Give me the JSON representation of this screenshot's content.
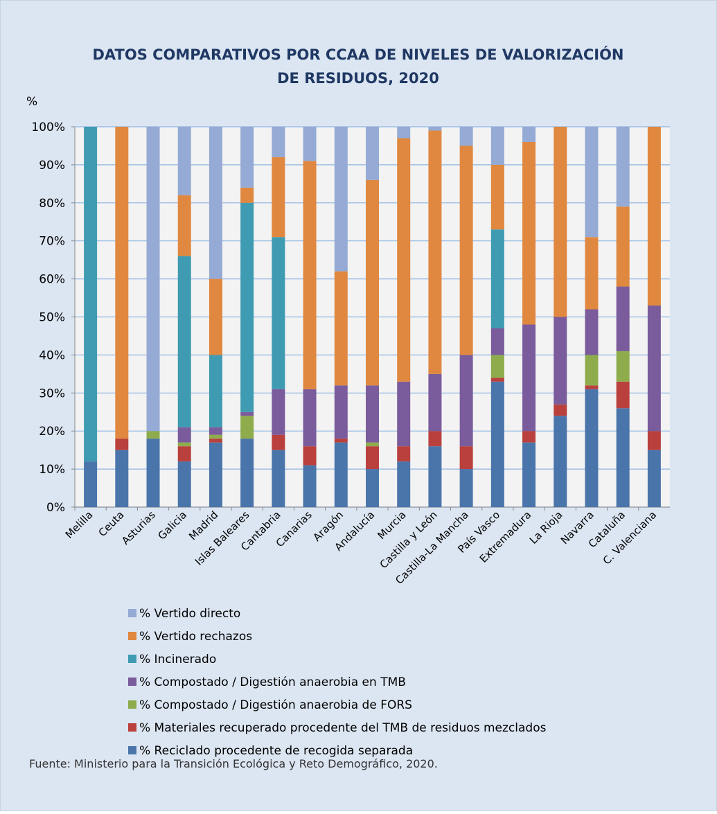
{
  "chart_data": {
    "type": "stacked_bar",
    "title": [
      "DATOS COMPARATIVOS POR CCAA DE NIVELES DE VALORIZACIÓN",
      "DE RESIDUOS, 2020"
    ],
    "ylabel": "%",
    "categories": [
      "Melilla",
      "Ceuta",
      "Asturias",
      "Galicia",
      "Madrid",
      "Islas Baleares",
      "Cantabria",
      "Canarias",
      "Aragón",
      "Andalucía",
      "Murcia",
      "Castilla y León",
      "Castilla-La Mancha",
      "País Vasco",
      "Extremadura",
      "La Rioja",
      "Navarra",
      "Cataluña",
      "C. Valenciana"
    ],
    "series": [
      {
        "name": "% Reciclado procedente de recogida separada",
        "color": "#4a75aa",
        "values": [
          12,
          15,
          18,
          12,
          17,
          18,
          15,
          11,
          17,
          10,
          12,
          16,
          10,
          33,
          17,
          24,
          31,
          26,
          15
        ]
      },
      {
        "name": "% Materiales recuperado procedente del TMB de residuos mezclados",
        "color": "#b9403d",
        "values": [
          0,
          3,
          0,
          4,
          1,
          0,
          4,
          5,
          1,
          6,
          4,
          4,
          6,
          1,
          3,
          3,
          1,
          7,
          5
        ]
      },
      {
        "name": "% Compostado / Digestión anaerobia de FORS",
        "color": "#8eac4c",
        "values": [
          0,
          0,
          2,
          1,
          1,
          6,
          0,
          0,
          0,
          1,
          0,
          0,
          0,
          6,
          0,
          0,
          8,
          8,
          0
        ]
      },
      {
        "name": "% Compostado / Digestión anaerobia en TMB",
        "color": "#7a5b9b",
        "values": [
          0,
          0,
          0,
          4,
          2,
          1,
          12,
          15,
          14,
          15,
          17,
          15,
          24,
          7,
          28,
          23,
          12,
          17,
          33
        ]
      },
      {
        "name": "% Incinerado",
        "color": "#3f9bb1",
        "values": [
          88,
          0,
          0,
          45,
          19,
          55,
          40,
          0,
          0,
          0,
          0,
          0,
          0,
          26,
          0,
          0,
          0,
          0,
          0
        ]
      },
      {
        "name": "% Vertido rechazos",
        "color": "#e0883f",
        "values": [
          0,
          82,
          0,
          16,
          20,
          4,
          21,
          60,
          30,
          54,
          64,
          64,
          55,
          17,
          48,
          50,
          19,
          21,
          47
        ]
      },
      {
        "name": "% Vertido directo",
        "color": "#95aad4",
        "values": [
          0,
          0,
          80,
          18,
          40,
          16,
          8,
          9,
          38,
          14,
          3,
          1,
          5,
          10,
          4,
          0,
          29,
          21,
          0
        ]
      }
    ],
    "ylim": [
      0,
      100
    ],
    "yticks": [
      {
        "value": 0,
        "label": "0%"
      },
      {
        "value": 10,
        "label": "10%"
      },
      {
        "value": 20,
        "label": "20%"
      },
      {
        "value": 30,
        "label": "30%"
      },
      {
        "value": 40,
        "label": "40%"
      },
      {
        "value": 50,
        "label": "50%"
      },
      {
        "value": 60,
        "label": "60%"
      },
      {
        "value": 70,
        "label": "70%"
      },
      {
        "value": 80,
        "label": "80%"
      },
      {
        "value": 90,
        "label": "90%"
      },
      {
        "value": 100,
        "label": "100%"
      }
    ],
    "grid": true,
    "source": "Fuente: Ministerio para la Transición Ecológica y Reto Demográfico, 2020."
  }
}
